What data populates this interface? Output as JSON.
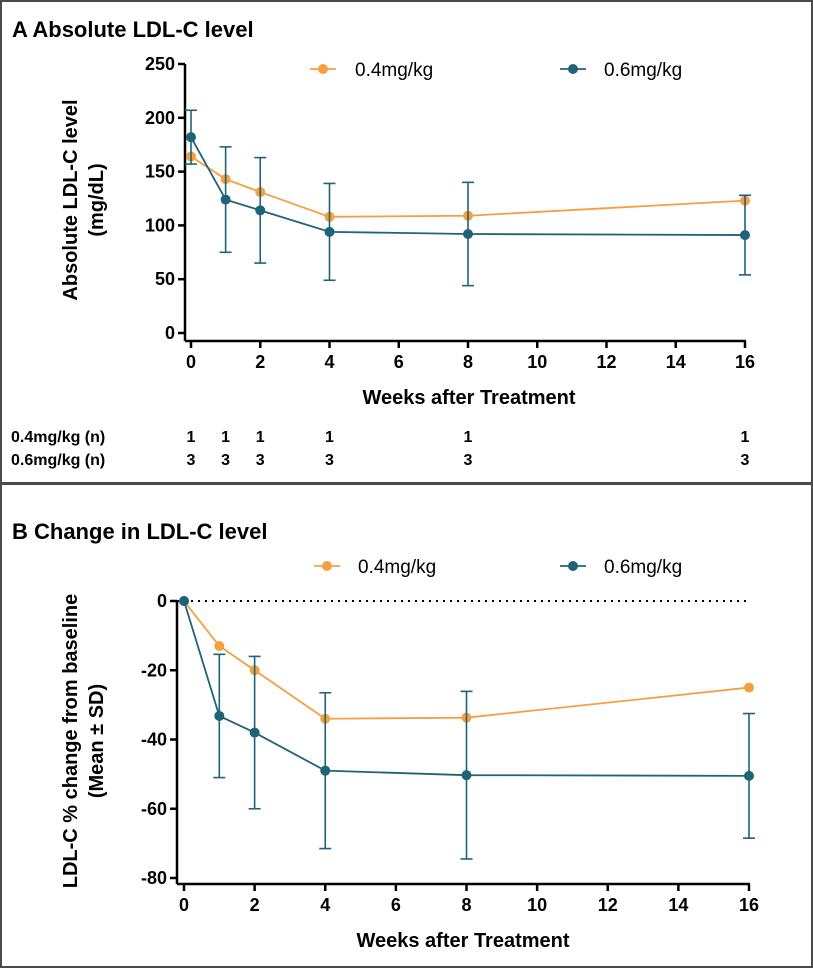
{
  "colors": {
    "series_04": "#F5A040",
    "series_06": "#1F6378",
    "border": "#4a4a4a"
  },
  "chart_data": [
    {
      "type": "line",
      "title": "A Absolute LDL-C level",
      "xlabel": "Weeks after Treatment",
      "ylabel_line1": "Absolute LDL-C level",
      "ylabel_line2": "(mg/dL)",
      "xlim": [
        0,
        16
      ],
      "ylim": [
        0,
        250
      ],
      "xticks": [
        0,
        2,
        4,
        6,
        8,
        10,
        12,
        14,
        16
      ],
      "yticks": [
        0,
        50,
        100,
        150,
        200,
        250
      ],
      "grid": false,
      "legend_position": "top",
      "series": [
        {
          "name": "0.4mg/kg",
          "color": "#F5A040",
          "x": [
            0,
            1,
            2,
            4,
            8,
            16
          ],
          "y": [
            164,
            143,
            131,
            108,
            109,
            123
          ],
          "sd": [
            null,
            null,
            null,
            null,
            null,
            null
          ]
        },
        {
          "name": "0.6mg/kg",
          "color": "#1F6378",
          "x": [
            0,
            1,
            2,
            4,
            8,
            16
          ],
          "y": [
            182,
            124,
            114,
            94,
            92,
            91
          ],
          "sd": [
            25,
            49,
            49,
            45,
            48,
            37
          ]
        }
      ],
      "n_table": {
        "x": [
          0,
          1,
          2,
          4,
          8,
          16
        ],
        "rows": [
          {
            "label": "0.4mg/kg (n)",
            "values": [
              "1",
              "1",
              "1",
              "1",
              "1",
              "1"
            ]
          },
          {
            "label": "0.6mg/kg (n)",
            "values": [
              "3",
              "3",
              "3",
              "3",
              "3",
              "3"
            ]
          }
        ]
      }
    },
    {
      "type": "line",
      "title": "B Change in LDL-C level",
      "xlabel": "Weeks after Treatment",
      "ylabel_line1": "LDL-C % change from baseline",
      "ylabel_line2": "(Mean ± SD)",
      "xlim": [
        0,
        16
      ],
      "ylim": [
        -80,
        0
      ],
      "xticks": [
        0,
        2,
        4,
        6,
        8,
        10,
        12,
        14,
        16
      ],
      "yticks": [
        0,
        -20,
        -40,
        -60,
        -80
      ],
      "grid": false,
      "reference_line_y": 0,
      "legend_position": "top",
      "series": [
        {
          "name": "0.4mg/kg",
          "color": "#F5A040",
          "x": [
            0,
            1,
            2,
            4,
            8,
            16
          ],
          "y": [
            0,
            -13,
            -20,
            -34,
            -33.7,
            -25
          ],
          "sd": [
            null,
            null,
            null,
            null,
            null,
            null
          ]
        },
        {
          "name": "0.6mg/kg",
          "color": "#1F6378",
          "x": [
            0,
            1,
            2,
            4,
            8,
            16
          ],
          "y": [
            0,
            -33.2,
            -38,
            -49,
            -50.3,
            -50.5
          ],
          "sd": [
            0,
            17.8,
            22,
            22.5,
            24.2,
            18
          ]
        }
      ]
    }
  ]
}
